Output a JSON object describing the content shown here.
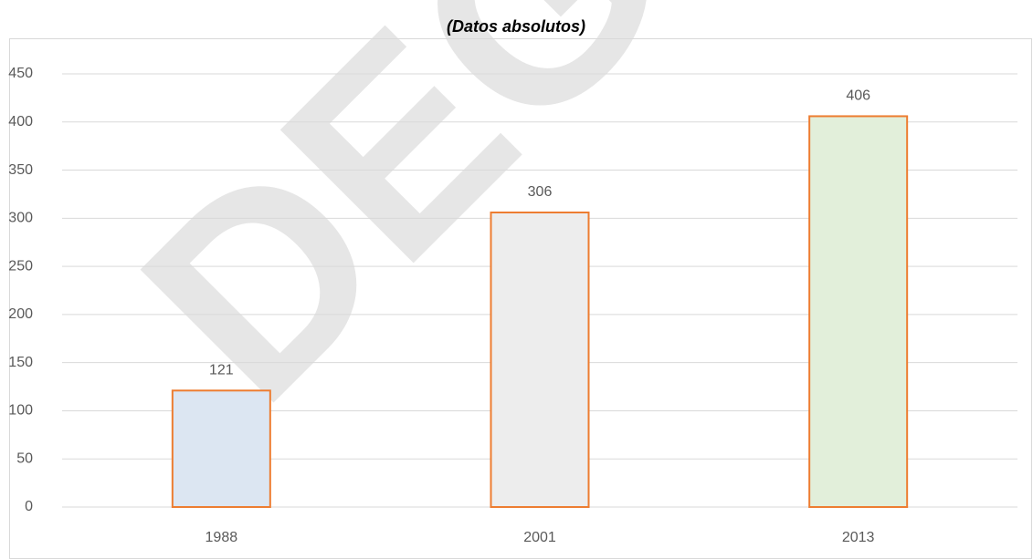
{
  "chart_data": {
    "type": "bar",
    "title": "(Datos absolutos)",
    "watermark": "DEG",
    "categories": [
      "1988",
      "2001",
      "2013"
    ],
    "values": [
      121,
      306,
      406
    ],
    "colors": [
      "#dce6f2",
      "#ededed",
      "#e2efda"
    ],
    "edge_color": "#ed7d31",
    "ylim": [
      0,
      450
    ],
    "yticks": [
      0,
      50,
      100,
      150,
      200,
      250,
      300,
      350,
      400,
      450
    ],
    "grid": true
  }
}
